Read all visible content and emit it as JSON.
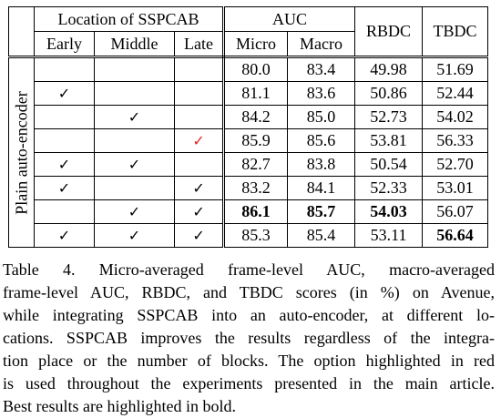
{
  "table": {
    "headers": {
      "location": "Location of SSPCAB",
      "auc": "AUC",
      "rbdc": "RBDC",
      "tbdc": "TBDC",
      "early": "Early",
      "middle": "Middle",
      "late": "Late",
      "micro": "Micro",
      "macro": "Macro"
    },
    "side_label": "Plain auto-encoder",
    "check_glyph": "✓",
    "highlight_color": "#e8242b",
    "rows": [
      {
        "early": false,
        "middle": false,
        "late": false,
        "micro": "80.0",
        "macro": "83.4",
        "rbdc": "49.98",
        "tbdc": "51.69"
      },
      {
        "early": true,
        "middle": false,
        "late": false,
        "micro": "81.1",
        "macro": "83.6",
        "rbdc": "50.86",
        "tbdc": "52.44"
      },
      {
        "early": false,
        "middle": true,
        "late": false,
        "micro": "84.2",
        "macro": "85.0",
        "rbdc": "52.73",
        "tbdc": "54.02"
      },
      {
        "early": false,
        "middle": false,
        "late": true,
        "late_red": true,
        "micro": "85.9",
        "macro": "85.6",
        "rbdc": "53.81",
        "tbdc": "56.33"
      },
      {
        "early": true,
        "middle": true,
        "late": false,
        "micro": "82.7",
        "macro": "83.8",
        "rbdc": "50.54",
        "tbdc": "52.70"
      },
      {
        "early": true,
        "middle": false,
        "late": true,
        "micro": "83.2",
        "macro": "84.1",
        "rbdc": "52.33",
        "tbdc": "53.01"
      },
      {
        "early": false,
        "middle": true,
        "late": true,
        "micro": "86.1",
        "macro": "85.7",
        "rbdc": "54.03",
        "tbdc": "56.07",
        "bold": [
          "micro",
          "macro",
          "rbdc"
        ]
      },
      {
        "early": true,
        "middle": true,
        "late": true,
        "micro": "85.3",
        "macro": "85.4",
        "rbdc": "53.11",
        "tbdc": "56.64",
        "bold": [
          "tbdc"
        ]
      }
    ]
  },
  "caption": {
    "lines": [
      "Table 4.   Micro-averaged frame-level AUC, macro-averaged",
      "frame-level AUC, RBDC, and TBDC scores (in %) on Avenue,",
      "while integrating SSPCAB into an auto-encoder, at different lo-",
      "cations. SSPCAB improves the results regardless of the integra-",
      "tion place or the number of blocks. The option highlighted in red",
      "is used throughout the experiments presented in the main article.",
      "Best results are highlighted in bold."
    ]
  }
}
